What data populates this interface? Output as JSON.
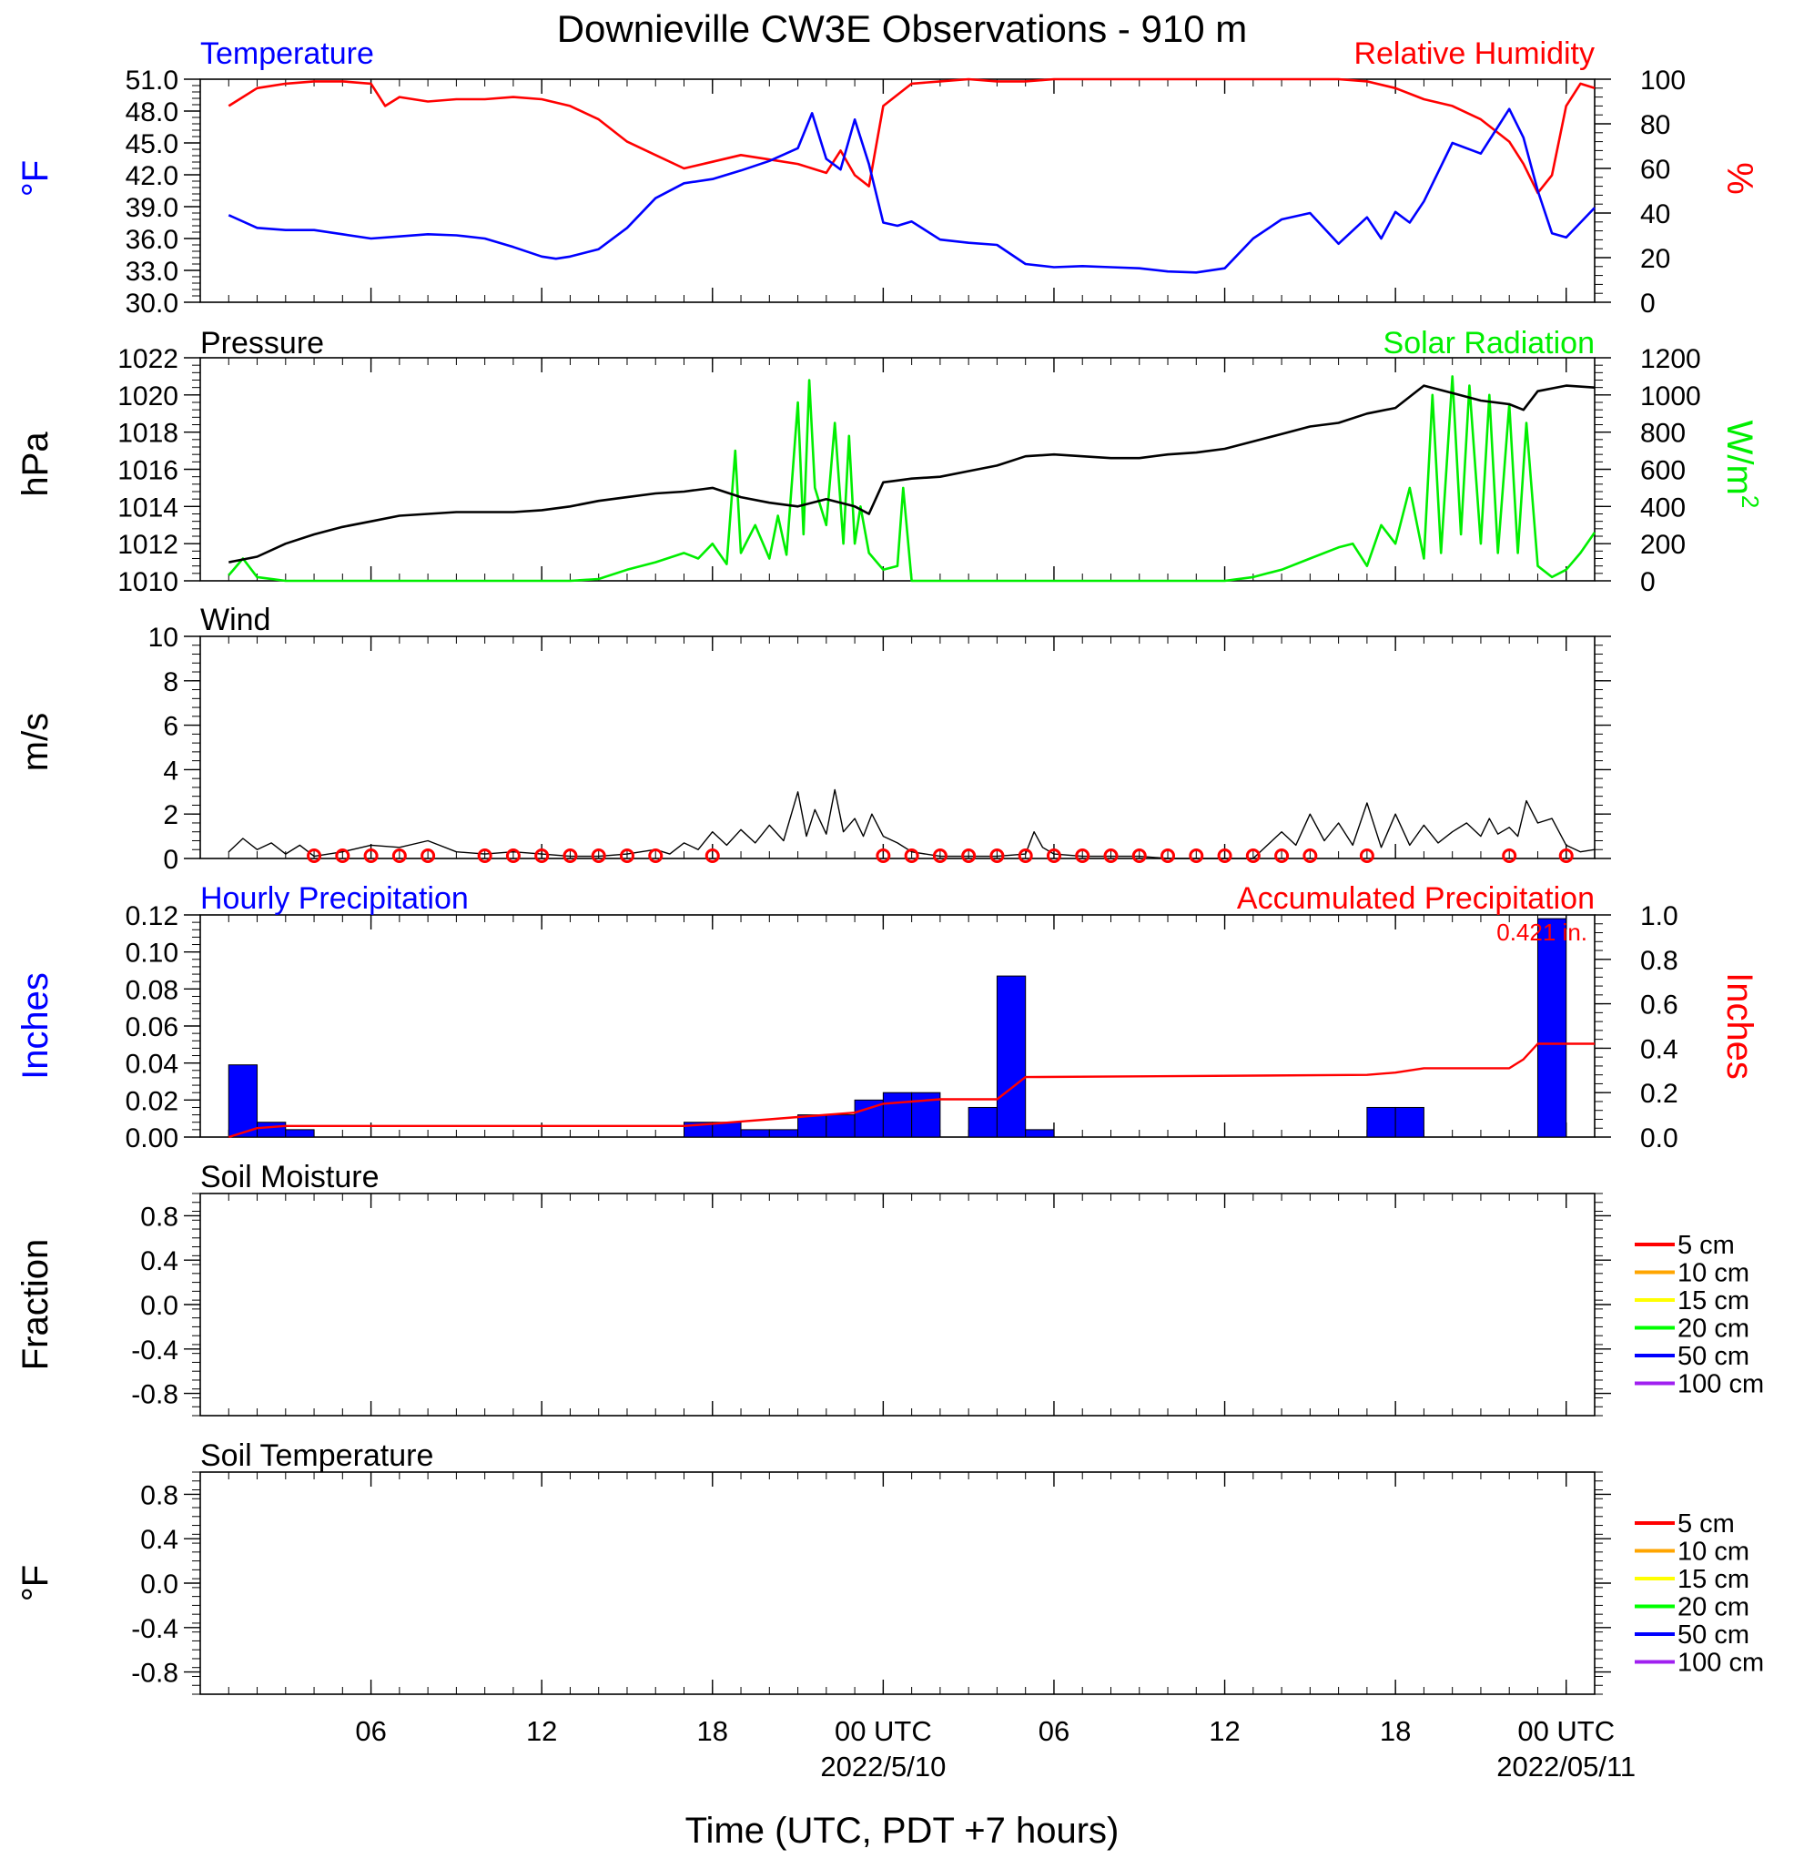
{
  "title": "Downieville CW3E Observations - 910 m",
  "colors": {
    "temperature": "#0000ff",
    "humidity": "#ff0000",
    "pressure": "#000000",
    "solar": "#00ee00",
    "wind": "#000000",
    "wind_barb": "#ff0000",
    "hourly_precip": "#0000ff",
    "accum_precip": "#ff0000"
  },
  "x_axis": {
    "tick_labels": [
      "06",
      "12",
      "18",
      "00 UTC",
      "06",
      "12",
      "18",
      "00 UTC"
    ],
    "date_labels": [
      "2022/5/10",
      "2022/05/11"
    ],
    "label": "Time (UTC, PDT +7 hours)"
  },
  "chart_data": [
    {
      "id": "temp_rh",
      "type": "line",
      "left_title": "Temperature",
      "right_title": "Relative Humidity",
      "ylabel_left": "°F",
      "ylabel_right": "%",
      "ylim_left": [
        30,
        51
      ],
      "yticks_left": [
        "51.0",
        "48.0",
        "45.0",
        "42.0",
        "39.0",
        "36.0",
        "33.0",
        "30.0"
      ],
      "ylim_right": [
        0,
        100
      ],
      "yticks_right": [
        "100",
        "80",
        "60",
        "40",
        "20",
        "0"
      ],
      "series": [
        {
          "key": "temperature",
          "axis": "left",
          "x_hours": [
            1,
            2,
            3,
            4,
            5,
            6,
            7,
            8,
            9,
            10,
            11,
            12,
            12.5,
            13,
            14,
            15,
            16,
            17,
            18,
            19,
            20,
            21,
            21.5,
            22,
            22.5,
            23,
            23.5,
            24,
            24.5,
            25,
            26,
            27,
            28,
            29,
            30,
            31,
            32,
            33,
            34,
            35,
            36,
            37,
            38,
            39,
            40,
            41,
            41.5,
            42,
            42.5,
            43,
            44,
            45,
            46,
            46.5,
            47,
            47.5,
            48,
            48.5,
            49
          ],
          "values": [
            38.2,
            37.0,
            36.8,
            36.8,
            36.4,
            36.0,
            36.2,
            36.4,
            36.3,
            36.0,
            35.2,
            34.3,
            34.1,
            34.3,
            35.0,
            37.0,
            39.8,
            41.2,
            41.6,
            42.4,
            43.3,
            44.5,
            47.8,
            43.5,
            42.5,
            47.2,
            43.0,
            37.5,
            37.2,
            37.6,
            35.9,
            35.6,
            35.4,
            33.6,
            33.3,
            33.4,
            33.3,
            33.2,
            32.9,
            32.8,
            33.2,
            36.0,
            37.8,
            38.4,
            35.5,
            38.0,
            36.0,
            38.5,
            37.5,
            39.5,
            45.0,
            44.0,
            48.2,
            45.5,
            40.5,
            36.5,
            36.1,
            37.5,
            38.9
          ]
        },
        {
          "key": "humidity",
          "axis": "right",
          "x_hours": [
            1,
            2,
            3,
            4,
            5,
            6,
            6.5,
            7,
            8,
            9,
            10,
            11,
            12,
            13,
            14,
            15,
            16,
            17,
            18,
            19,
            20,
            21,
            22,
            22.5,
            23,
            23.5,
            24,
            25,
            26,
            27,
            28,
            29,
            30,
            31,
            32,
            33,
            34,
            35,
            36,
            37,
            38,
            39,
            40,
            41,
            42,
            43,
            44,
            45,
            46,
            46.5,
            47,
            47.5,
            48,
            48.5,
            49
          ],
          "values": [
            88,
            96,
            98,
            99,
            99,
            98,
            88,
            92,
            90,
            91,
            91,
            92,
            91,
            88,
            82,
            72,
            66,
            60,
            63,
            66,
            64,
            62,
            58,
            68,
            57,
            52,
            88,
            98,
            99,
            100,
            99,
            99,
            100,
            100,
            100,
            100,
            100,
            100,
            100,
            100,
            100,
            100,
            100,
            99,
            96,
            91,
            88,
            82,
            72,
            62,
            49,
            57,
            88,
            98,
            96
          ]
        }
      ]
    },
    {
      "id": "pressure_solar",
      "type": "line",
      "left_title": "Pressure",
      "right_title": "Solar Radiation",
      "ylabel_left": "hPa",
      "ylabel_right": "W/m",
      "ylabel_right_sup": "2",
      "ylim_left": [
        1010,
        1022
      ],
      "yticks_left": [
        "1022",
        "1020",
        "1018",
        "1016",
        "1014",
        "1012",
        "1010"
      ],
      "ylim_right": [
        0,
        1200
      ],
      "yticks_right": [
        "1200",
        "1000",
        "800",
        "600",
        "400",
        "200",
        "0"
      ],
      "series": [
        {
          "key": "pressure",
          "axis": "left",
          "x_hours": [
            1,
            2,
            3,
            4,
            5,
            6,
            7,
            8,
            9,
            10,
            11,
            12,
            13,
            14,
            15,
            16,
            17,
            18,
            19,
            20,
            21,
            22,
            23,
            23.5,
            24,
            24.5,
            25,
            26,
            27,
            28,
            29,
            30,
            31,
            32,
            33,
            34,
            35,
            36,
            37,
            38,
            39,
            40,
            41,
            42,
            43,
            44,
            45,
            46,
            46.5,
            47,
            48,
            49
          ],
          "values": [
            1011.0,
            1011.3,
            1012.0,
            1012.5,
            1012.9,
            1013.2,
            1013.5,
            1013.6,
            1013.7,
            1013.7,
            1013.7,
            1013.8,
            1014.0,
            1014.3,
            1014.5,
            1014.7,
            1014.8,
            1015.0,
            1014.5,
            1014.2,
            1014.0,
            1014.4,
            1014.0,
            1013.6,
            1015.3,
            1015.4,
            1015.5,
            1015.6,
            1015.9,
            1016.2,
            1016.7,
            1016.8,
            1016.7,
            1016.6,
            1016.6,
            1016.8,
            1016.9,
            1017.1,
            1017.5,
            1017.9,
            1018.3,
            1018.5,
            1019.0,
            1019.3,
            1020.5,
            1020.1,
            1019.7,
            1019.5,
            1019.2,
            1020.2,
            1020.5,
            1020.4
          ]
        },
        {
          "key": "solar",
          "axis": "right",
          "x_hours": [
            1,
            1.5,
            2,
            3,
            4,
            8,
            12,
            13,
            14,
            15,
            16,
            17,
            17.5,
            18,
            18.5,
            18.8,
            19,
            19.5,
            20,
            20.3,
            20.6,
            21,
            21.2,
            21.4,
            21.6,
            22,
            22.3,
            22.6,
            22.8,
            23,
            23.2,
            23.5,
            24,
            24.5,
            24.7,
            25,
            26,
            28,
            32,
            36,
            37,
            37.5,
            38,
            39,
            40,
            40.5,
            41,
            41.5,
            42,
            42.5,
            43,
            43.3,
            43.6,
            44,
            44.3,
            44.6,
            45,
            45.3,
            45.6,
            46,
            46.3,
            46.6,
            47,
            47.5,
            48,
            48.5,
            49
          ],
          "values": [
            30,
            120,
            20,
            0,
            0,
            0,
            0,
            0,
            10,
            60,
            100,
            150,
            120,
            200,
            90,
            700,
            150,
            300,
            120,
            350,
            140,
            960,
            250,
            1080,
            500,
            300,
            850,
            200,
            780,
            200,
            400,
            150,
            60,
            80,
            500,
            0,
            0,
            0,
            0,
            0,
            20,
            40,
            60,
            120,
            180,
            200,
            80,
            300,
            200,
            500,
            120,
            1000,
            150,
            1100,
            250,
            1050,
            200,
            1000,
            150,
            950,
            150,
            850,
            80,
            20,
            60,
            150,
            260
          ]
        }
      ]
    },
    {
      "id": "wind",
      "type": "line",
      "left_title": "Wind",
      "ylabel_left": "m/s",
      "ylim_left": [
        0,
        10
      ],
      "yticks_left": [
        "10",
        "8",
        "6",
        "4",
        "2",
        "0"
      ],
      "series": [
        {
          "key": "wind",
          "axis": "left",
          "x_hours": [
            1,
            1.5,
            2,
            2.5,
            3,
            3.5,
            4,
            5,
            6,
            7,
            8,
            9,
            10,
            11,
            12,
            13,
            14,
            15,
            16,
            16.5,
            17,
            17.5,
            18,
            18.5,
            19,
            19.5,
            20,
            20.5,
            21,
            21.3,
            21.6,
            22,
            22.3,
            22.6,
            23,
            23.3,
            23.6,
            24,
            24.5,
            25,
            26,
            27,
            28,
            29,
            29.3,
            29.6,
            30,
            31,
            32,
            33,
            34,
            35,
            36,
            37,
            37.5,
            38,
            38.5,
            39,
            39.5,
            40,
            40.5,
            41,
            41.5,
            42,
            42.5,
            43,
            43.5,
            44,
            44.5,
            45,
            45.3,
            45.6,
            46,
            46.3,
            46.6,
            47,
            47.5,
            48,
            48.5,
            49
          ],
          "values": [
            0.3,
            0.9,
            0.4,
            0.7,
            0.2,
            0.6,
            0.1,
            0.3,
            0.6,
            0.5,
            0.8,
            0.3,
            0.2,
            0.3,
            0.2,
            0.1,
            0.1,
            0.2,
            0.4,
            0.2,
            0.7,
            0.4,
            1.2,
            0.6,
            1.3,
            0.7,
            1.5,
            0.8,
            3.0,
            1.0,
            2.2,
            1.1,
            3.1,
            1.2,
            1.8,
            1.0,
            2.0,
            1.0,
            0.7,
            0.3,
            0.1,
            0.1,
            0.1,
            0.2,
            1.2,
            0.5,
            0.2,
            0.1,
            0.1,
            0.1,
            0.0,
            0.0,
            0.0,
            0.0,
            0.6,
            1.2,
            0.6,
            2.0,
            0.8,
            1.6,
            0.6,
            2.5,
            0.5,
            2.0,
            0.6,
            1.5,
            0.7,
            1.2,
            1.6,
            1.0,
            1.8,
            1.1,
            1.4,
            1.0,
            2.6,
            1.6,
            1.8,
            0.6,
            0.3,
            0.4
          ]
        }
      ],
      "barbs": {
        "x_hours": [
          4,
          5,
          6,
          7,
          8,
          10,
          11,
          12,
          13,
          14,
          15,
          16,
          18,
          24,
          25,
          26,
          27,
          28,
          29,
          30,
          31,
          32,
          33,
          34,
          35,
          36,
          37,
          38,
          39,
          41,
          46,
          48
        ]
      }
    },
    {
      "id": "precip",
      "type": "bar",
      "left_title": "Hourly Precipitation",
      "right_title": "Accumulated Precipitation",
      "total_label": "0.421 in.",
      "ylabel_left": "Inches",
      "ylabel_right": "Inches",
      "ylim_left": [
        0,
        0.12
      ],
      "yticks_left": [
        "0.12",
        "0.10",
        "0.08",
        "0.06",
        "0.04",
        "0.02",
        "0.00"
      ],
      "ylim_right": [
        0,
        1.0
      ],
      "yticks_right": [
        "1.0",
        "0.8",
        "0.6",
        "0.4",
        "0.2",
        "0.0"
      ],
      "hourly": {
        "start_hours": [
          1,
          2,
          3,
          17,
          18,
          19,
          20,
          21,
          22,
          23,
          24,
          25,
          27,
          28,
          29,
          41,
          42,
          47
        ],
        "values": [
          0.039,
          0.008,
          0.004,
          0.008,
          0.008,
          0.004,
          0.004,
          0.012,
          0.012,
          0.02,
          0.024,
          0.024,
          0.016,
          0.087,
          0.004,
          0.016,
          0.016,
          0.118
        ]
      },
      "accumulated": {
        "x_hours": [
          1,
          2,
          3,
          17,
          18,
          19,
          20,
          21,
          22,
          23,
          24,
          25,
          26,
          27,
          28,
          28.5,
          29,
          41,
          42,
          43,
          46,
          46.5,
          47,
          49
        ],
        "values": [
          0.0,
          0.04,
          0.05,
          0.05,
          0.06,
          0.07,
          0.08,
          0.09,
          0.1,
          0.11,
          0.15,
          0.16,
          0.17,
          0.17,
          0.17,
          0.22,
          0.27,
          0.28,
          0.29,
          0.31,
          0.31,
          0.35,
          0.42,
          0.42
        ]
      }
    },
    {
      "id": "soil_moisture",
      "type": "line",
      "left_title": "Soil Moisture",
      "ylabel_left": "Fraction",
      "ylim_left": [
        -1,
        1
      ],
      "yticks_left": [
        "0.8",
        "0.4",
        "0.0",
        "-0.4",
        "-0.8"
      ],
      "legend": [
        "5 cm",
        "10 cm",
        "15 cm",
        "20 cm",
        "50 cm",
        "100 cm"
      ],
      "legend_colors": [
        "#ff0000",
        "#ffa500",
        "#ffff00",
        "#00ff00",
        "#0000ff",
        "#a020f0"
      ],
      "series": []
    },
    {
      "id": "soil_temperature",
      "type": "line",
      "left_title": "Soil Temperature",
      "ylabel_left": "°F",
      "ylim_left": [
        -1,
        1
      ],
      "yticks_left": [
        "0.8",
        "0.4",
        "0.0",
        "-0.4",
        "-0.8"
      ],
      "legend": [
        "5 cm",
        "10 cm",
        "15 cm",
        "20 cm",
        "50 cm",
        "100 cm"
      ],
      "legend_colors": [
        "#ff0000",
        "#ffa500",
        "#ffff00",
        "#00ff00",
        "#0000ff",
        "#a020f0"
      ],
      "series": []
    }
  ]
}
